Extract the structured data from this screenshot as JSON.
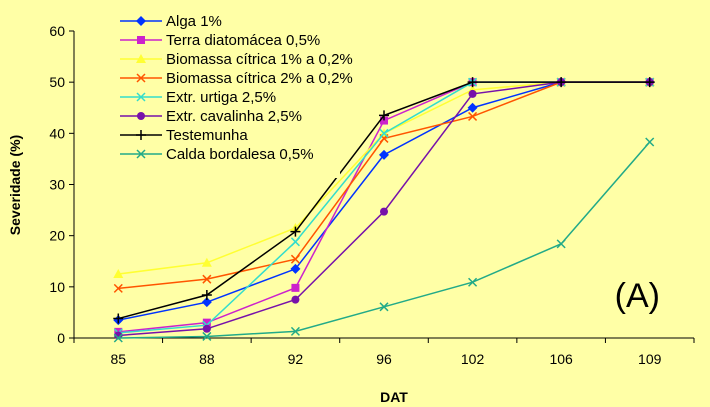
{
  "chart_data": {
    "type": "line",
    "xlabel": "DAT",
    "ylabel": "Severidade (%)",
    "ylim": [
      0,
      60
    ],
    "yticks": [
      0,
      10,
      20,
      30,
      40,
      50,
      60
    ],
    "grid": false,
    "legend_position": "top-left",
    "annotation": "(A)",
    "categories": [
      "85",
      "88",
      "92",
      "96",
      "102",
      "106",
      "109"
    ],
    "series": [
      {
        "name": "Alga 1%",
        "color": "#0033ff",
        "marker": "diamond",
        "values": [
          3.5,
          7,
          13.5,
          35.8,
          45,
          50,
          50
        ]
      },
      {
        "name": "Terra diatomácea 0,5%",
        "color": "#cc22cc",
        "marker": "square",
        "values": [
          1.2,
          3,
          9.8,
          42.5,
          50,
          50,
          50
        ]
      },
      {
        "name": "Biomassa cítrica 1% a 0,2%",
        "color": "#ffff33",
        "marker": "triangle",
        "values": [
          12.5,
          14.7,
          21.5,
          40,
          48.5,
          50,
          50
        ]
      },
      {
        "name": "Biomassa cítrica 2% a 0,2%",
        "color": "#ff5500",
        "marker": "x",
        "values": [
          9.7,
          11.5,
          15.4,
          39,
          43.3,
          50,
          50
        ]
      },
      {
        "name": "Extr. urtiga 2,5%",
        "color": "#33ddcc",
        "marker": "x",
        "values": [
          1,
          2.5,
          18.8,
          40,
          50,
          50,
          50
        ]
      },
      {
        "name": "Extr. cavalinha 2,5%",
        "color": "#7711aa",
        "marker": "circle",
        "values": [
          0.5,
          1.8,
          7.5,
          24.7,
          47.7,
          50,
          50
        ]
      },
      {
        "name": "Testemunha",
        "color": "#000000",
        "marker": "plus",
        "values": [
          3.8,
          8.4,
          20.8,
          43.5,
          50,
          50,
          50
        ]
      },
      {
        "name": "Calda bordalesa 0,5%",
        "color": "#22aa88",
        "marker": "x",
        "values": [
          0,
          0.3,
          1.3,
          6.1,
          10.9,
          18.4,
          38.3
        ]
      }
    ]
  }
}
